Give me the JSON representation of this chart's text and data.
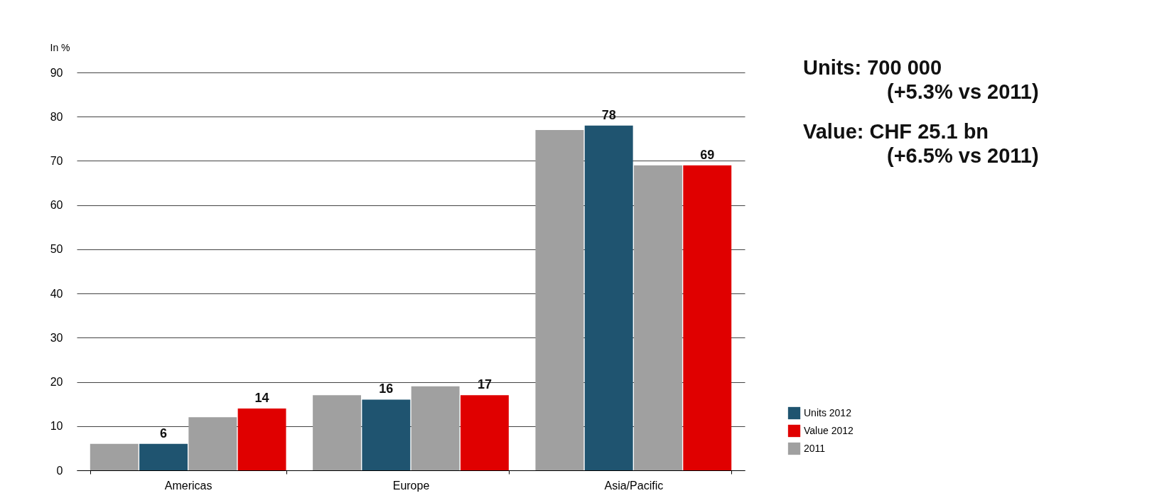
{
  "chart_data": {
    "type": "bar",
    "ylabel": "In %",
    "categories": [
      "Americas",
      "Europe",
      "Asia/Pacific"
    ],
    "series": [
      {
        "name": "2011",
        "color": "#a0a0a0",
        "values": [
          6,
          17,
          77
        ]
      },
      {
        "name": "Units 2012",
        "color": "#1f5470",
        "values": [
          6,
          16,
          78
        ],
        "value_labels": [
          "6",
          "16",
          "78"
        ]
      },
      {
        "color": "#a0a0a0",
        "values": [
          12,
          19,
          69
        ]
      },
      {
        "name": "Value 2012",
        "color": "#e00000",
        "values": [
          14,
          17,
          69
        ],
        "value_labels": [
          "14",
          "17",
          "69"
        ]
      }
    ],
    "ylim": [
      0,
      90
    ],
    "yticks": [
      0,
      10,
      20,
      30,
      40,
      50,
      60,
      70,
      80,
      90
    ],
    "grid": "y",
    "legend": "bottom right",
    "annotations": [
      "Units: 700 000",
      "(+5.3% vs 2011)",
      "Value: CHF 25.1 bn",
      "(+6.5% vs 2011)"
    ]
  }
}
